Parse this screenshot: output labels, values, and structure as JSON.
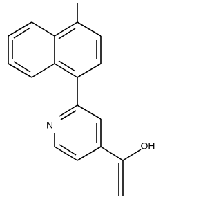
{
  "atoms": {
    "nitrogen": "N",
    "hydroxyl": "OH"
  }
}
